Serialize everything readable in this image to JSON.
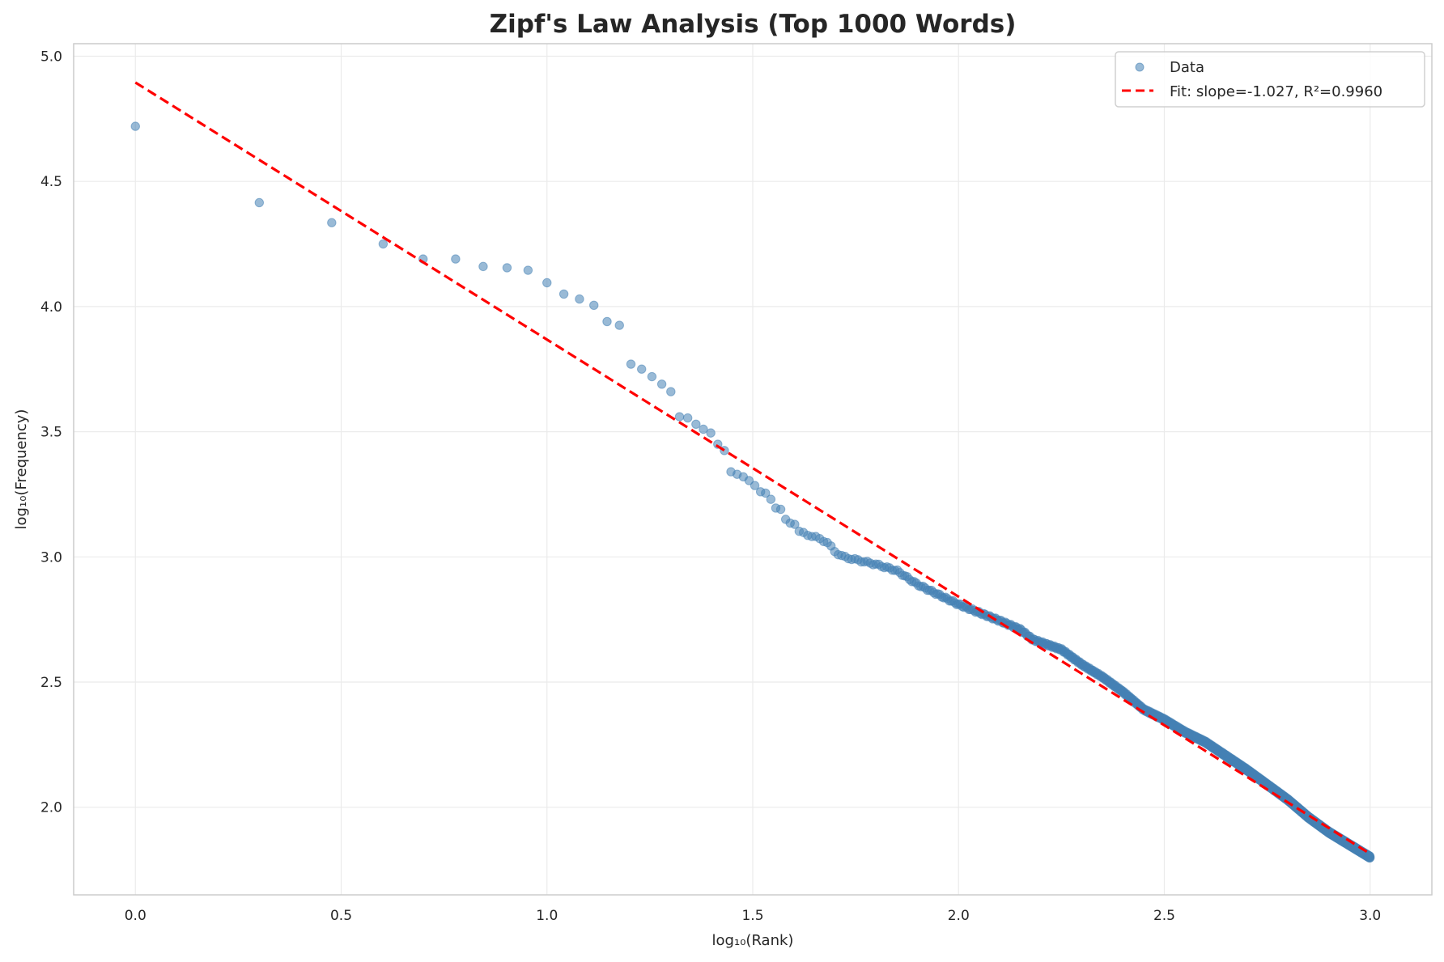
{
  "chart_data": {
    "type": "scatter",
    "title": "Zipf's Law Analysis (Top 1000 Words)",
    "xlabel": "log₁₀(Rank)",
    "ylabel": "log₁₀(Frequency)",
    "xlim": [
      -0.15,
      3.15
    ],
    "ylim": [
      1.65,
      5.05
    ],
    "x_ticks": [
      "0.0",
      "0.5",
      "1.0",
      "1.5",
      "2.0",
      "2.5",
      "3.0"
    ],
    "y_ticks": [
      "2.0",
      "2.5",
      "3.0",
      "3.5",
      "4.0",
      "4.5",
      "5.0"
    ],
    "grid": true,
    "legend_position": "top-right",
    "colors": {
      "data": "#4682b4",
      "fit": "#ff0000"
    },
    "series": [
      {
        "name": "Data",
        "kind": "scatter",
        "points": [
          [
            0.0,
            4.72
          ],
          [
            0.301,
            4.415
          ],
          [
            0.477,
            4.335
          ],
          [
            0.602,
            4.25
          ],
          [
            0.699,
            4.19
          ],
          [
            0.778,
            4.19
          ],
          [
            0.845,
            4.16
          ],
          [
            0.903,
            4.155
          ],
          [
            0.954,
            4.145
          ],
          [
            1.0,
            4.095
          ],
          [
            1.041,
            4.05
          ],
          [
            1.079,
            4.03
          ],
          [
            1.114,
            4.005
          ],
          [
            1.146,
            3.94
          ],
          [
            1.176,
            3.925
          ],
          [
            1.204,
            3.77
          ],
          [
            1.23,
            3.75
          ],
          [
            1.255,
            3.72
          ],
          [
            1.279,
            3.69
          ],
          [
            1.301,
            3.66
          ],
          [
            1.322,
            3.56
          ],
          [
            1.342,
            3.555
          ],
          [
            1.362,
            3.53
          ],
          [
            1.38,
            3.51
          ],
          [
            1.398,
            3.495
          ],
          [
            1.415,
            3.45
          ],
          [
            1.431,
            3.425
          ],
          [
            1.447,
            3.34
          ],
          [
            1.462,
            3.33
          ],
          [
            1.477,
            3.32
          ],
          [
            1.491,
            3.305
          ],
          [
            1.505,
            3.285
          ],
          [
            1.519,
            3.26
          ],
          [
            1.531,
            3.255
          ],
          [
            1.544,
            3.23
          ],
          [
            1.556,
            3.195
          ],
          [
            1.568,
            3.19
          ],
          [
            1.58,
            3.15
          ],
          [
            1.591,
            3.135
          ],
          [
            1.602,
            3.13
          ]
        ],
        "tail_curve": [
          [
            1.613,
            3.1
          ],
          [
            1.65,
            3.08
          ],
          [
            1.68,
            3.06
          ],
          [
            1.7,
            3.02
          ],
          [
            1.72,
            3.0
          ],
          [
            1.8,
            2.97
          ],
          [
            1.85,
            2.945
          ],
          [
            1.9,
            2.89
          ],
          [
            1.95,
            2.85
          ],
          [
            2.0,
            2.81
          ],
          [
            2.1,
            2.745
          ],
          [
            2.15,
            2.71
          ],
          [
            2.18,
            2.67
          ],
          [
            2.25,
            2.63
          ],
          [
            2.3,
            2.57
          ],
          [
            2.35,
            2.52
          ],
          [
            2.4,
            2.46
          ],
          [
            2.45,
            2.39
          ],
          [
            2.5,
            2.35
          ],
          [
            2.55,
            2.3
          ],
          [
            2.6,
            2.26
          ],
          [
            2.7,
            2.15
          ],
          [
            2.75,
            2.09
          ],
          [
            2.8,
            2.03
          ],
          [
            2.85,
            1.96
          ],
          [
            2.9,
            1.9
          ],
          [
            2.95,
            1.85
          ],
          [
            3.0,
            1.8
          ]
        ],
        "n_points": 1000
      },
      {
        "name": "Fit: slope=-1.027, R²=0.9960",
        "kind": "line",
        "slope": -1.027,
        "intercept": 4.895,
        "x_range": [
          0,
          3
        ]
      }
    ]
  }
}
